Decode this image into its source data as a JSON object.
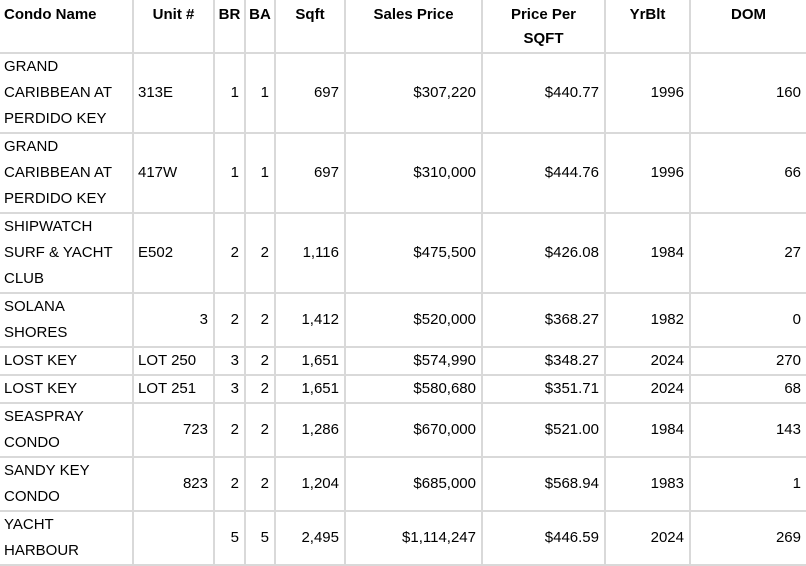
{
  "colors": {
    "gridline": "#d9d9d9",
    "text": "#000000",
    "background": "#ffffff"
  },
  "table": {
    "columns": [
      {
        "key": "name",
        "label": "Condo Name",
        "align": "left",
        "header_align": "left"
      },
      {
        "key": "unit",
        "label": "Unit #",
        "align": "left",
        "header_align": "center"
      },
      {
        "key": "br",
        "label": "BR",
        "align": "right",
        "header_align": "center"
      },
      {
        "key": "ba",
        "label": "BA",
        "align": "right",
        "header_align": "center"
      },
      {
        "key": "sqft",
        "label": "Sqft",
        "align": "right",
        "header_align": "center"
      },
      {
        "key": "sales_price",
        "label": "Sales Price",
        "align": "right",
        "header_align": "center"
      },
      {
        "key": "price_per_sqft",
        "label": "Price Per SQFT",
        "align": "right",
        "header_align": "center"
      },
      {
        "key": "yrblt",
        "label": "YrBlt",
        "align": "right",
        "header_align": "center"
      },
      {
        "key": "dom",
        "label": "DOM",
        "align": "right",
        "header_align": "center"
      }
    ],
    "rows": [
      {
        "name": "GRAND CARIBBEAN AT PERDIDO KEY",
        "unit": "313E",
        "unit_align": "left",
        "br": "1",
        "ba": "1",
        "sqft": "697",
        "sales_price": "$307,220",
        "price_per_sqft": "$440.77",
        "yrblt": "1996",
        "dom": "160"
      },
      {
        "name": "GRAND CARIBBEAN AT PERDIDO KEY",
        "unit": "417W",
        "unit_align": "left",
        "br": "1",
        "ba": "1",
        "sqft": "697",
        "sales_price": "$310,000",
        "price_per_sqft": "$444.76",
        "yrblt": "1996",
        "dom": "66"
      },
      {
        "name": "SHIPWATCH SURF & YACHT CLUB",
        "unit": "E502",
        "unit_align": "left",
        "br": "2",
        "ba": "2",
        "sqft": "1,116",
        "sales_price": "$475,500",
        "price_per_sqft": "$426.08",
        "yrblt": "1984",
        "dom": "27"
      },
      {
        "name": "SOLANA SHORES",
        "unit": "3",
        "unit_align": "right",
        "br": "2",
        "ba": "2",
        "sqft": "1,412",
        "sales_price": "$520,000",
        "price_per_sqft": "$368.27",
        "yrblt": "1982",
        "dom": "0"
      },
      {
        "name": "LOST KEY",
        "unit": "LOT 250",
        "unit_align": "left",
        "br": "3",
        "ba": "2",
        "sqft": "1,651",
        "sales_price": "$574,990",
        "price_per_sqft": "$348.27",
        "yrblt": "2024",
        "dom": "270"
      },
      {
        "name": "LOST KEY",
        "unit": "LOT 251",
        "unit_align": "left",
        "br": "3",
        "ba": "2",
        "sqft": "1,651",
        "sales_price": "$580,680",
        "price_per_sqft": "$351.71",
        "yrblt": "2024",
        "dom": "68"
      },
      {
        "name": "SEASPRAY CONDO",
        "unit": "723",
        "unit_align": "right",
        "br": "2",
        "ba": "2",
        "sqft": "1,286",
        "sales_price": "$670,000",
        "price_per_sqft": "$521.00",
        "yrblt": "1984",
        "dom": "143"
      },
      {
        "name": "SANDY KEY CONDO",
        "unit": "823",
        "unit_align": "right",
        "br": "2",
        "ba": "2",
        "sqft": "1,204",
        "sales_price": "$685,000",
        "price_per_sqft": "$568.94",
        "yrblt": "1983",
        "dom": "1"
      },
      {
        "name": "YACHT HARBOUR",
        "unit": "",
        "unit_align": "left",
        "br": "5",
        "ba": "5",
        "sqft": "2,495",
        "sales_price": "$1,114,247",
        "price_per_sqft": "$446.59",
        "yrblt": "2024",
        "dom": "269"
      }
    ]
  }
}
